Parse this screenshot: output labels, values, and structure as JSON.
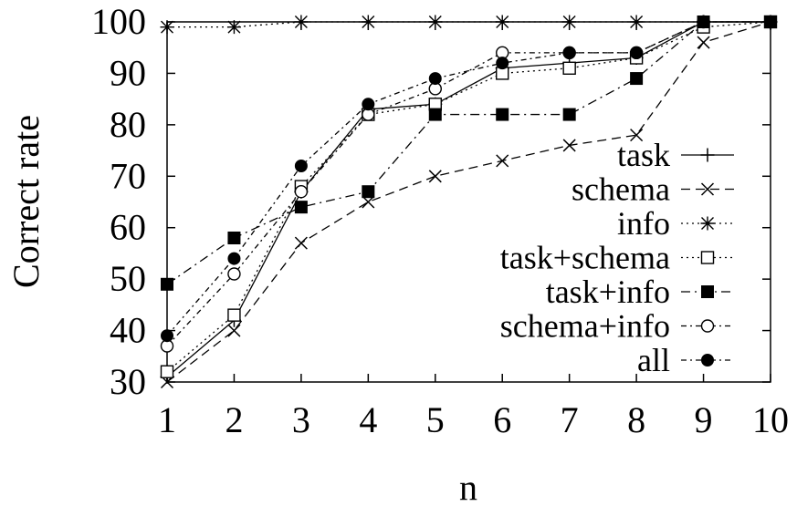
{
  "chart_data": {
    "type": "line",
    "title": "",
    "xlabel": "n",
    "ylabel": "Correct rate",
    "x": [
      1,
      2,
      3,
      4,
      5,
      6,
      7,
      8,
      9,
      10
    ],
    "xlim": [
      1,
      10
    ],
    "ylim": [
      30,
      100
    ],
    "xticks": [
      "1",
      "2",
      "3",
      "4",
      "5",
      "6",
      "7",
      "8",
      "9",
      "10"
    ],
    "yticks": [
      "30",
      "40",
      "50",
      "60",
      "70",
      "80",
      "90",
      "100"
    ],
    "grid": false,
    "legend_position": "right",
    "series": [
      {
        "name": "task",
        "values": [
          31,
          42,
          67,
          83,
          84,
          91,
          92,
          93,
          100,
          100
        ],
        "marker": "plus",
        "dash": "solid"
      },
      {
        "name": "schema",
        "values": [
          30,
          40,
          57,
          65,
          70,
          73,
          76,
          78,
          96,
          100
        ],
        "marker": "cross",
        "dash": "longdash"
      },
      {
        "name": "info",
        "values": [
          99,
          99,
          100,
          100,
          100,
          100,
          100,
          100,
          100,
          100
        ],
        "marker": "star",
        "dash": "dotted"
      },
      {
        "name": "task+schema",
        "values": [
          32,
          43,
          68,
          82,
          84,
          90,
          91,
          93,
          99,
          100
        ],
        "marker": "open-square",
        "dash": "dotted"
      },
      {
        "name": "task+info",
        "values": [
          49,
          58,
          64,
          67,
          82,
          82,
          82,
          89,
          100,
          100
        ],
        "marker": "filled-square",
        "dash": "dashdot"
      },
      {
        "name": "schema+info",
        "values": [
          37,
          51,
          67,
          82,
          87,
          94,
          94,
          94,
          100,
          100
        ],
        "marker": "open-circle",
        "dash": "dashdot-fine"
      },
      {
        "name": "all",
        "values": [
          39,
          54,
          72,
          84,
          89,
          92,
          94,
          94,
          100,
          100
        ],
        "marker": "filled-circle",
        "dash": "dashdot-fine"
      }
    ]
  }
}
